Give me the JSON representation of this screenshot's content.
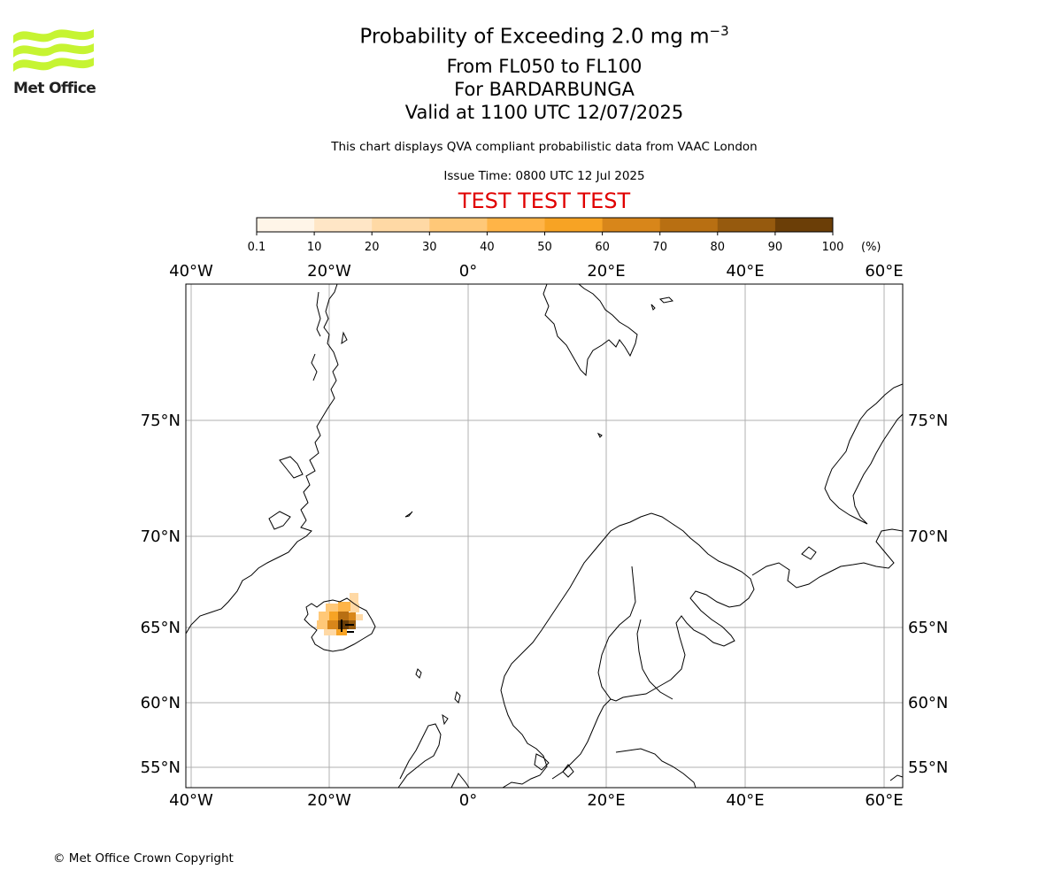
{
  "logo": {
    "text": "Met Office"
  },
  "title": {
    "prefix": "Probability of Exceeding 2.0 mg m",
    "superscript": "−3",
    "line2": "From FL050 to FL100",
    "line3": "For BARDARBUNGA",
    "line4": "Valid at 1100 UTC 12/07/2025"
  },
  "description": "This chart displays QVA compliant probabilistic data from VAAC London",
  "issue_time": "Issue Time: 0800 UTC 12 Jul 2025",
  "test_banner": "TEST TEST TEST",
  "test_color": "#e00000",
  "colorbar": {
    "ticks": [
      "0.1",
      "10",
      "20",
      "30",
      "40",
      "50",
      "60",
      "70",
      "80",
      "90",
      "100"
    ],
    "unit": "(%)",
    "colors": [
      "#fff5e8",
      "#ffe6c6",
      "#ffd9a5",
      "#ffc878",
      "#ffb447",
      "#f7a324",
      "#d8861a",
      "#b86f12",
      "#965a0e",
      "#6b3e07"
    ]
  },
  "map": {
    "lon_ticks_top": [
      "40°W",
      "20°W",
      "0°",
      "20°E",
      "40°E",
      "60°E"
    ],
    "lon_ticks_bottom": [
      "40°W",
      "20°W",
      "0°",
      "20°E",
      "40°E",
      "60°E"
    ],
    "lat_ticks_left": [
      "75°N",
      "70°N",
      "65°N",
      "60°N",
      "55°N"
    ],
    "lat_ticks_right": [
      "75°N",
      "70°N",
      "65°N",
      "60°N",
      "55°N"
    ],
    "volcano": "BARDARBUNGA"
  },
  "footer": "© Met Office Crown Copyright"
}
